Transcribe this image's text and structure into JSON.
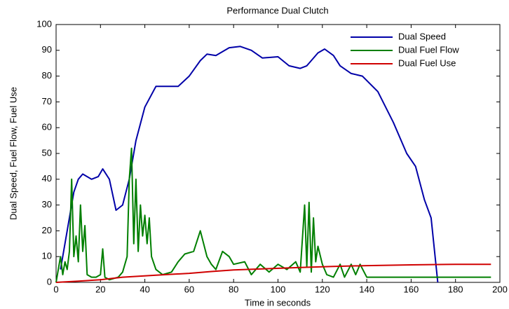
{
  "chart_data": {
    "type": "line",
    "title": "Performance Dual Clutch",
    "x_label": "Time in seconds",
    "y_label": "Dual Speed, Fuel Flow, Fuel Use",
    "xlim": [
      0,
      200
    ],
    "ylim": [
      0,
      100
    ],
    "xticks": [
      0,
      20,
      40,
      60,
      80,
      100,
      120,
      140,
      160,
      180,
      200
    ],
    "yticks": [
      0,
      10,
      20,
      30,
      40,
      50,
      60,
      70,
      80,
      90,
      100
    ],
    "legend": "upper right",
    "series": [
      {
        "name": "Dual Speed",
        "color": "#0000a8",
        "x": [
          2,
          5,
          8,
          10,
          12,
          16,
          19,
          21,
          24,
          27,
          30,
          33,
          36,
          40,
          45,
          50,
          55,
          60,
          65,
          68,
          72,
          78,
          83,
          88,
          93,
          100,
          105,
          110,
          113,
          118,
          121,
          125,
          128,
          133,
          138,
          145,
          152,
          158,
          162,
          166,
          169,
          172
        ],
        "values": [
          5,
          20,
          35,
          40,
          42,
          40,
          41,
          44,
          40,
          28,
          30,
          40,
          55,
          68,
          76,
          76,
          76,
          80,
          86,
          88.5,
          88,
          91,
          91.5,
          90,
          87,
          87.5,
          84,
          83,
          84,
          89,
          90.5,
          88,
          84,
          81,
          80,
          74,
          62,
          50,
          45,
          32,
          25,
          0
        ]
      },
      {
        "name": "Dual Fuel Flow",
        "color": "#007f00",
        "x": [
          0,
          2,
          3,
          4,
          5,
          6,
          7,
          8,
          9,
          10,
          11,
          12,
          13,
          14,
          16,
          18,
          20,
          21,
          22,
          24,
          28,
          30,
          32,
          33,
          34,
          35,
          36,
          37,
          38,
          39,
          40,
          41,
          42,
          43,
          45,
          48,
          52,
          55,
          58,
          62,
          65,
          68,
          70,
          72,
          75,
          78,
          80,
          85,
          88,
          92,
          96,
          100,
          104,
          108,
          110,
          112,
          113,
          114,
          115,
          116,
          117,
          118,
          120,
          122,
          125,
          128,
          130,
          133,
          135,
          137,
          140,
          150,
          160,
          170,
          180,
          196
        ],
        "values": [
          0,
          10,
          3,
          8,
          5,
          12,
          40,
          10,
          18,
          8,
          30,
          12,
          22,
          3,
          2,
          2,
          3,
          13,
          2,
          1,
          2,
          4,
          10,
          40,
          52,
          15,
          40,
          12,
          30,
          18,
          26,
          15,
          25,
          10,
          5,
          3,
          4,
          8,
          11,
          12,
          20,
          10,
          7,
          5,
          12,
          10,
          7,
          8,
          3,
          7,
          4,
          7,
          5,
          8,
          4,
          30,
          6,
          31,
          4,
          25,
          8,
          14,
          7,
          3,
          2,
          7,
          2,
          7,
          3,
          7,
          2,
          2,
          2,
          2,
          2,
          2
        ]
      },
      {
        "name": "Dual Fuel Use",
        "color": "#d00000",
        "x": [
          0,
          10,
          20,
          30,
          45,
          60,
          70,
          80,
          95,
          110,
          125,
          140,
          160,
          180,
          196
        ],
        "values": [
          0,
          0.5,
          1,
          2,
          2.8,
          3.5,
          4.2,
          4.8,
          5.3,
          5.8,
          6.2,
          6.5,
          6.8,
          7,
          7
        ]
      }
    ]
  }
}
